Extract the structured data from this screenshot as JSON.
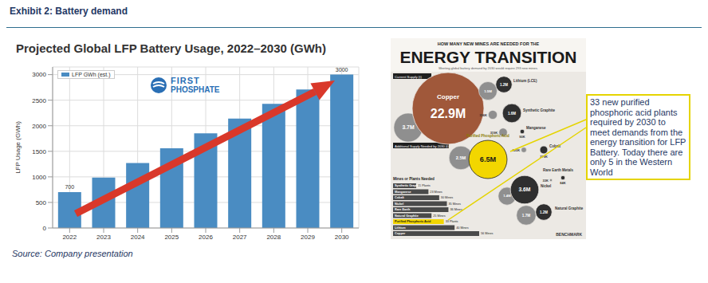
{
  "title": "Exhibit 2: Battery demand",
  "source": "Source: Company presentation",
  "chart_data": {
    "type": "bar",
    "title": "Projected Global LFP Battery Usage, 2022–2030 (GWh)",
    "y_label": "LFP Usage (GWh)",
    "categories": [
      "2022",
      "2023",
      "2024",
      "2025",
      "2026",
      "2027",
      "2028",
      "2029",
      "2030"
    ],
    "series": [
      {
        "name": "LFP GWh (est.)",
        "color": "#4a8cc2",
        "values": [
          700,
          985,
          1270,
          1560,
          1850,
          2140,
          2430,
          2710,
          3000
        ],
        "value_labels": [
          "700",
          null,
          null,
          null,
          null,
          null,
          null,
          null,
          "3000"
        ]
      }
    ],
    "data_labels": true,
    "ylim": [
      0,
      3150
    ],
    "yticks": [
      0,
      500,
      1000,
      1500,
      2000,
      2500,
      3000
    ],
    "grid": true,
    "legend": "upper left",
    "annotations": [
      "FIRST",
      "PHOSPHATE"
    ]
  },
  "infographic": {
    "kicker": "HOW MANY NEW MINES ARE NEEDED FOR THE",
    "title": "ENERGY TRANSITION",
    "subtitle": "Meeting global battery demand by 2030 would require 293 new mines.",
    "current_label": "Current Supply (t)",
    "additional_label": "Additional Supply Needed by 2030 (t)",
    "materials": [
      {
        "name": "Copper",
        "color": "#a0583a",
        "current": 22900000,
        "current_label": "22.9M",
        "additional": 3700000,
        "additional_label": "3.7M"
      },
      {
        "name": "Lithium (LCE)",
        "color": "#2f2f2f",
        "current": 1200000,
        "current_label": "1.2M",
        "additional": 1500000,
        "additional_label": "1.5M"
      },
      {
        "name": "Synthetic Graphite",
        "color": "#2f2f2f",
        "current": 1600000,
        "current_label": "1.6M",
        "additional": 356000,
        "additional_label": "356K"
      },
      {
        "name": "Manganese",
        "color": "#2f2f2f",
        "current": 90000,
        "current_label": "90K",
        "additional": 319000,
        "additional_label": "319K"
      },
      {
        "name": "Cobalt",
        "color": "#2f2f2f",
        "current": 279000,
        "current_label": "279K",
        "additional": 125000,
        "additional_label": "125K"
      },
      {
        "name": "Purified Phosphoric Acid",
        "color": "#f2d600",
        "current": 6500000,
        "current_label": "6.5M",
        "additional": 2500000,
        "additional_label": "2.5M"
      },
      {
        "name": "Rare Earth Metals",
        "color": "#2f2f2f",
        "current": 84000,
        "current_label": "84K",
        "additional": 33000,
        "additional_label": "33K"
      },
      {
        "name": "Nickel",
        "color": "#2f2f2f",
        "current": 3600000,
        "current_label": "3.6M",
        "additional": 1400000,
        "additional_label": "1.4M"
      },
      {
        "name": "Natural Graphite",
        "color": "#2f2f2f",
        "current": 1200000,
        "current_label": "1.2M",
        "additional": 1700000,
        "additional_label": "1.7M"
      }
    ],
    "needed_title": "Mines or Plants Needed",
    "needed": [
      {
        "name": "Synthetic Graphite",
        "value": 15,
        "label": "15 Plants",
        "color": "#4a4a4a"
      },
      {
        "name": "Manganese",
        "value": 23,
        "label": "23 Mines",
        "color": "#4a4a4a"
      },
      {
        "name": "Cobalt",
        "value": 30,
        "label": "30 Mines",
        "color": "#4a4a4a"
      },
      {
        "name": "Nickel",
        "value": 35,
        "label": "35 Mines",
        "color": "#4a4a4a"
      },
      {
        "name": "Rare Earth",
        "value": 36,
        "label": "36 Mines",
        "color": "#4a4a4a"
      },
      {
        "name": "Natural Graphite",
        "value": 25,
        "label": "25 Mines",
        "color": "#4a4a4a"
      },
      {
        "name": "Purified Phosphoric Acid",
        "value": 33,
        "label": "33 Plants",
        "color": "#f2d600"
      },
      {
        "name": "Lithium",
        "value": 40,
        "label": "40 Mines",
        "color": "#4a4a4a"
      },
      {
        "name": "Copper",
        "value": 56,
        "label": "56 Mines",
        "color": "#4a4a4a"
      }
    ],
    "brand": "BENCHMARK"
  },
  "callout": "33 new purified phosphoric acid plants required by 2030 to meet demands from the energy transition for LFP Battery. Today there are only 5 in the Western World"
}
